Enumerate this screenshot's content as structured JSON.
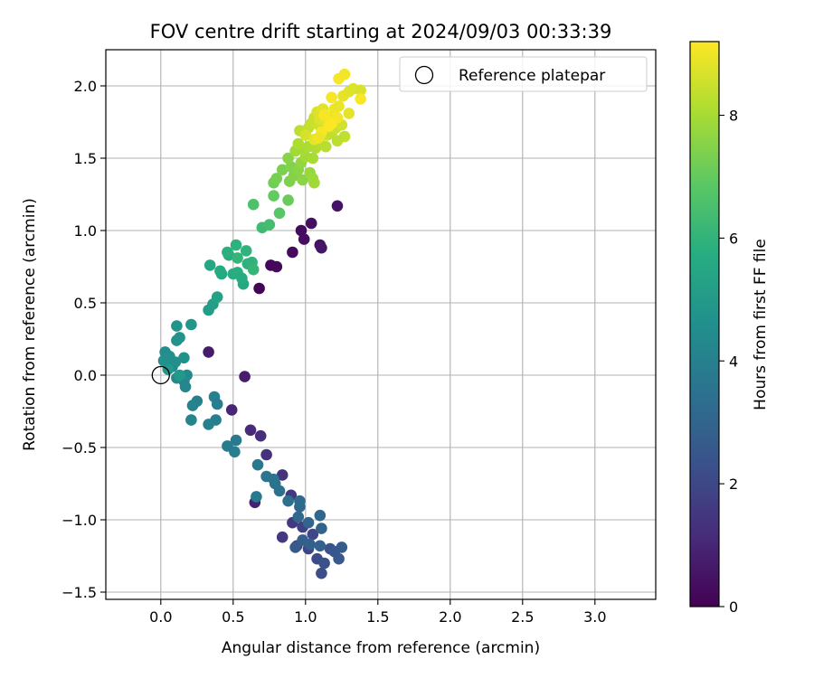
{
  "chart_data": {
    "type": "scatter",
    "title": "FOV centre drift starting at 2024/09/03 00:33:39",
    "xlabel": "Angular distance from reference (arcmin)",
    "ylabel": "Rotation from reference (arcmin)",
    "xlim": [
      -0.38,
      3.42
    ],
    "ylim": [
      -1.55,
      2.25
    ],
    "xticks": [
      0.0,
      0.5,
      1.0,
      1.5,
      2.0,
      2.5,
      3.0
    ],
    "xtick_labels": [
      "0.0",
      "0.5",
      "1.0",
      "1.5",
      "2.0",
      "2.5",
      "3.0"
    ],
    "yticks": [
      -1.5,
      -1.0,
      -0.5,
      0.0,
      0.5,
      1.0,
      1.5,
      2.0
    ],
    "ytick_labels": [
      "−1.5",
      "−1.0",
      "−0.5",
      "0.0",
      "0.5",
      "1.0",
      "1.5",
      "2.0"
    ],
    "grid": true,
    "legend": {
      "position": "top-right",
      "entries": [
        {
          "label": "Reference platepar",
          "marker": "open-circle",
          "x": 0.0,
          "y": 0.0
        }
      ]
    },
    "colorbar": {
      "label": "Hours from first FF file",
      "colormap": "viridis",
      "range": [
        0,
        9.2
      ],
      "ticks": [
        0,
        2,
        4,
        6,
        8
      ],
      "tick_labels": [
        "0",
        "2",
        "4",
        "6",
        "8"
      ]
    },
    "points": [
      {
        "x": 0.68,
        "y": 0.6,
        "t": 0.1
      },
      {
        "x": 0.76,
        "y": 0.76,
        "t": 0.15
      },
      {
        "x": 0.8,
        "y": 0.75,
        "t": 0.2
      },
      {
        "x": 0.91,
        "y": 0.85,
        "t": 0.25
      },
      {
        "x": 0.97,
        "y": 1.0,
        "t": 0.3
      },
      {
        "x": 0.99,
        "y": 0.94,
        "t": 0.35
      },
      {
        "x": 1.04,
        "y": 1.05,
        "t": 0.4
      },
      {
        "x": 1.1,
        "y": 0.9,
        "t": 0.45
      },
      {
        "x": 1.22,
        "y": 1.17,
        "t": 0.5
      },
      {
        "x": 1.11,
        "y": 0.88,
        "t": 0.55
      },
      {
        "x": 0.33,
        "y": 0.16,
        "t": 0.7
      },
      {
        "x": 0.58,
        "y": -0.01,
        "t": 0.75
      },
      {
        "x": 0.65,
        "y": -0.88,
        "t": 0.9
      },
      {
        "x": 0.49,
        "y": -0.24,
        "t": 1.0
      },
      {
        "x": 0.62,
        "y": -0.38,
        "t": 1.1
      },
      {
        "x": 0.69,
        "y": -0.42,
        "t": 1.2
      },
      {
        "x": 0.73,
        "y": -0.55,
        "t": 1.3
      },
      {
        "x": 0.84,
        "y": -0.69,
        "t": 1.4
      },
      {
        "x": 0.9,
        "y": -0.83,
        "t": 1.5
      },
      {
        "x": 0.84,
        "y": -1.12,
        "t": 1.55
      },
      {
        "x": 0.91,
        "y": -1.02,
        "t": 1.6
      },
      {
        "x": 0.94,
        "y": -1.18,
        "t": 1.7
      },
      {
        "x": 0.98,
        "y": -1.05,
        "t": 1.8
      },
      {
        "x": 1.02,
        "y": -1.2,
        "t": 1.9
      },
      {
        "x": 1.05,
        "y": -1.1,
        "t": 2.0
      },
      {
        "x": 1.08,
        "y": -1.27,
        "t": 2.1
      },
      {
        "x": 1.11,
        "y": -1.37,
        "t": 2.2
      },
      {
        "x": 1.13,
        "y": -1.3,
        "t": 2.3
      },
      {
        "x": 1.17,
        "y": -1.2,
        "t": 2.4
      },
      {
        "x": 1.2,
        "y": -1.22,
        "t": 2.5
      },
      {
        "x": 1.23,
        "y": -1.27,
        "t": 2.6
      },
      {
        "x": 1.25,
        "y": -1.19,
        "t": 2.7
      },
      {
        "x": 0.93,
        "y": -1.19,
        "t": 2.6
      },
      {
        "x": 0.98,
        "y": -1.14,
        "t": 2.75
      },
      {
        "x": 1.03,
        "y": -1.17,
        "t": 2.85
      },
      {
        "x": 1.1,
        "y": -1.18,
        "t": 2.9
      },
      {
        "x": 1.02,
        "y": -1.02,
        "t": 3.0
      },
      {
        "x": 1.1,
        "y": -0.97,
        "t": 3.05
      },
      {
        "x": 1.11,
        "y": -1.06,
        "t": 2.95
      },
      {
        "x": 0.96,
        "y": -0.91,
        "t": 3.1
      },
      {
        "x": 0.95,
        "y": -0.98,
        "t": 3.15
      },
      {
        "x": 0.96,
        "y": -0.87,
        "t": 3.2
      },
      {
        "x": 0.88,
        "y": -0.87,
        "t": 3.4
      },
      {
        "x": 0.79,
        "y": -0.75,
        "t": 3.5
      },
      {
        "x": 0.82,
        "y": -0.8,
        "t": 3.45
      },
      {
        "x": 0.73,
        "y": -0.7,
        "t": 3.6
      },
      {
        "x": 0.78,
        "y": -0.72,
        "t": 3.55
      },
      {
        "x": 0.67,
        "y": -0.62,
        "t": 3.7
      },
      {
        "x": 0.66,
        "y": -0.84,
        "t": 3.75
      },
      {
        "x": 0.52,
        "y": -0.45,
        "t": 3.8
      },
      {
        "x": 0.46,
        "y": -0.49,
        "t": 3.85
      },
      {
        "x": 0.51,
        "y": -0.53,
        "t": 3.9
      },
      {
        "x": 0.38,
        "y": -0.31,
        "t": 3.95
      },
      {
        "x": 0.33,
        "y": -0.34,
        "t": 4.0
      },
      {
        "x": 0.25,
        "y": -0.18,
        "t": 4.05
      },
      {
        "x": 0.22,
        "y": -0.21,
        "t": 4.1
      },
      {
        "x": 0.21,
        "y": -0.31,
        "t": 4.15
      },
      {
        "x": 0.37,
        "y": -0.15,
        "t": 4.0
      },
      {
        "x": 0.39,
        "y": -0.2,
        "t": 3.9
      },
      {
        "x": 0.16,
        "y": -0.04,
        "t": 4.2
      },
      {
        "x": 0.17,
        "y": -0.08,
        "t": 4.25
      },
      {
        "x": 0.11,
        "y": -0.02,
        "t": 4.3
      },
      {
        "x": 0.18,
        "y": 0.0,
        "t": 4.35
      },
      {
        "x": 0.08,
        "y": 0.06,
        "t": 4.4
      },
      {
        "x": 0.04,
        "y": 0.12,
        "t": 4.45
      },
      {
        "x": 0.03,
        "y": 0.16,
        "t": 4.5
      },
      {
        "x": 0.06,
        "y": 0.13,
        "t": 4.55
      },
      {
        "x": 0.1,
        "y": 0.09,
        "t": 4.6
      },
      {
        "x": 0.16,
        "y": 0.12,
        "t": 4.65
      },
      {
        "x": 0.11,
        "y": 0.24,
        "t": 4.7
      },
      {
        "x": 0.13,
        "y": 0.26,
        "t": 4.75
      },
      {
        "x": 0.11,
        "y": 0.34,
        "t": 4.8
      },
      {
        "x": 0.21,
        "y": 0.35,
        "t": 4.85
      },
      {
        "x": 0.05,
        "y": 0.04,
        "t": 4.9
      },
      {
        "x": 0.13,
        "y": 0.0,
        "t": 4.95
      },
      {
        "x": 0.02,
        "y": 0.1,
        "t": 4.7
      },
      {
        "x": 0.33,
        "y": 0.45,
        "t": 5.1
      },
      {
        "x": 0.36,
        "y": 0.49,
        "t": 5.2
      },
      {
        "x": 0.39,
        "y": 0.54,
        "t": 5.3
      },
      {
        "x": 0.34,
        "y": 0.76,
        "t": 5.5
      },
      {
        "x": 0.42,
        "y": 0.7,
        "t": 5.6
      },
      {
        "x": 0.41,
        "y": 0.72,
        "t": 5.65
      },
      {
        "x": 0.47,
        "y": 0.83,
        "t": 5.7
      },
      {
        "x": 0.5,
        "y": 0.7,
        "t": 5.75
      },
      {
        "x": 0.53,
        "y": 0.71,
        "t": 5.8
      },
      {
        "x": 0.46,
        "y": 0.85,
        "t": 5.85
      },
      {
        "x": 0.52,
        "y": 0.9,
        "t": 5.9
      },
      {
        "x": 0.57,
        "y": 0.63,
        "t": 5.6
      },
      {
        "x": 0.56,
        "y": 0.67,
        "t": 5.7
      },
      {
        "x": 0.59,
        "y": 0.86,
        "t": 5.95
      },
      {
        "x": 0.63,
        "y": 0.78,
        "t": 6.0
      },
      {
        "x": 0.6,
        "y": 0.77,
        "t": 5.9
      },
      {
        "x": 0.53,
        "y": 0.81,
        "t": 6.05
      },
      {
        "x": 0.64,
        "y": 0.73,
        "t": 6.1
      },
      {
        "x": 0.7,
        "y": 1.02,
        "t": 6.3
      },
      {
        "x": 0.75,
        "y": 1.04,
        "t": 6.4
      },
      {
        "x": 0.64,
        "y": 1.18,
        "t": 6.6
      },
      {
        "x": 0.82,
        "y": 1.12,
        "t": 6.8
      },
      {
        "x": 0.78,
        "y": 1.24,
        "t": 7.0
      },
      {
        "x": 0.88,
        "y": 1.21,
        "t": 7.1
      },
      {
        "x": 0.78,
        "y": 1.33,
        "t": 7.2
      },
      {
        "x": 0.8,
        "y": 1.36,
        "t": 7.3
      },
      {
        "x": 0.84,
        "y": 1.42,
        "t": 7.35
      },
      {
        "x": 0.89,
        "y": 1.34,
        "t": 7.4
      },
      {
        "x": 0.92,
        "y": 1.38,
        "t": 7.5
      },
      {
        "x": 0.9,
        "y": 1.44,
        "t": 7.45
      },
      {
        "x": 0.95,
        "y": 1.42,
        "t": 7.6
      },
      {
        "x": 0.88,
        "y": 1.5,
        "t": 7.55
      },
      {
        "x": 0.97,
        "y": 1.47,
        "t": 7.7
      },
      {
        "x": 0.98,
        "y": 1.35,
        "t": 7.6
      },
      {
        "x": 1.03,
        "y": 1.4,
        "t": 7.8
      },
      {
        "x": 1.05,
        "y": 1.36,
        "t": 7.85
      },
      {
        "x": 1.06,
        "y": 1.33,
        "t": 7.9
      },
      {
        "x": 1.0,
        "y": 1.51,
        "t": 7.95
      },
      {
        "x": 0.99,
        "y": 1.56,
        "t": 8.0
      },
      {
        "x": 1.02,
        "y": 1.58,
        "t": 8.05
      },
      {
        "x": 1.05,
        "y": 1.5,
        "t": 8.0
      },
      {
        "x": 0.93,
        "y": 1.55,
        "t": 7.9
      },
      {
        "x": 0.95,
        "y": 1.6,
        "t": 8.1
      },
      {
        "x": 1.07,
        "y": 1.57,
        "t": 8.15
      },
      {
        "x": 1.1,
        "y": 1.6,
        "t": 8.2
      },
      {
        "x": 0.96,
        "y": 1.69,
        "t": 8.3
      },
      {
        "x": 1.02,
        "y": 1.71,
        "t": 8.4
      },
      {
        "x": 1.04,
        "y": 1.74,
        "t": 8.45
      },
      {
        "x": 1.06,
        "y": 1.78,
        "t": 8.5
      },
      {
        "x": 1.09,
        "y": 1.73,
        "t": 8.55
      },
      {
        "x": 1.12,
        "y": 1.69,
        "t": 8.6
      },
      {
        "x": 1.15,
        "y": 1.66,
        "t": 8.5
      },
      {
        "x": 1.18,
        "y": 1.67,
        "t": 8.4
      },
      {
        "x": 1.21,
        "y": 1.71,
        "t": 8.45
      },
      {
        "x": 1.25,
        "y": 1.73,
        "t": 8.6
      },
      {
        "x": 1.27,
        "y": 1.65,
        "t": 8.35
      },
      {
        "x": 1.22,
        "y": 1.62,
        "t": 8.3
      },
      {
        "x": 1.14,
        "y": 1.58,
        "t": 8.25
      },
      {
        "x": 1.0,
        "y": 1.66,
        "t": 8.65
      },
      {
        "x": 1.08,
        "y": 1.82,
        "t": 8.7
      },
      {
        "x": 1.1,
        "y": 1.77,
        "t": 8.75
      },
      {
        "x": 1.12,
        "y": 1.84,
        "t": 8.8
      },
      {
        "x": 1.14,
        "y": 1.78,
        "t": 8.85
      },
      {
        "x": 1.17,
        "y": 1.76,
        "t": 8.9
      },
      {
        "x": 1.19,
        "y": 1.8,
        "t": 8.95
      },
      {
        "x": 1.2,
        "y": 1.84,
        "t": 9.0
      },
      {
        "x": 1.22,
        "y": 1.78,
        "t": 9.05
      },
      {
        "x": 1.23,
        "y": 1.86,
        "t": 8.95
      },
      {
        "x": 1.18,
        "y": 1.92,
        "t": 9.1
      },
      {
        "x": 1.26,
        "y": 1.93,
        "t": 8.9
      },
      {
        "x": 1.3,
        "y": 1.96,
        "t": 8.8
      },
      {
        "x": 1.33,
        "y": 1.98,
        "t": 8.75
      },
      {
        "x": 1.38,
        "y": 1.97,
        "t": 8.7
      },
      {
        "x": 1.38,
        "y": 1.91,
        "t": 9.15
      },
      {
        "x": 1.3,
        "y": 1.81,
        "t": 8.85
      },
      {
        "x": 1.23,
        "y": 2.05,
        "t": 9.1
      },
      {
        "x": 1.27,
        "y": 2.08,
        "t": 9.05
      },
      {
        "x": 1.06,
        "y": 1.63,
        "t": 8.9
      },
      {
        "x": 1.11,
        "y": 1.68,
        "t": 9.1
      },
      {
        "x": 1.16,
        "y": 1.72,
        "t": 9.15
      },
      {
        "x": 1.18,
        "y": 1.74,
        "t": 9.2
      },
      {
        "x": 1.13,
        "y": 1.8,
        "t": 9.12
      },
      {
        "x": 1.09,
        "y": 1.64,
        "t": 9.0
      }
    ]
  }
}
